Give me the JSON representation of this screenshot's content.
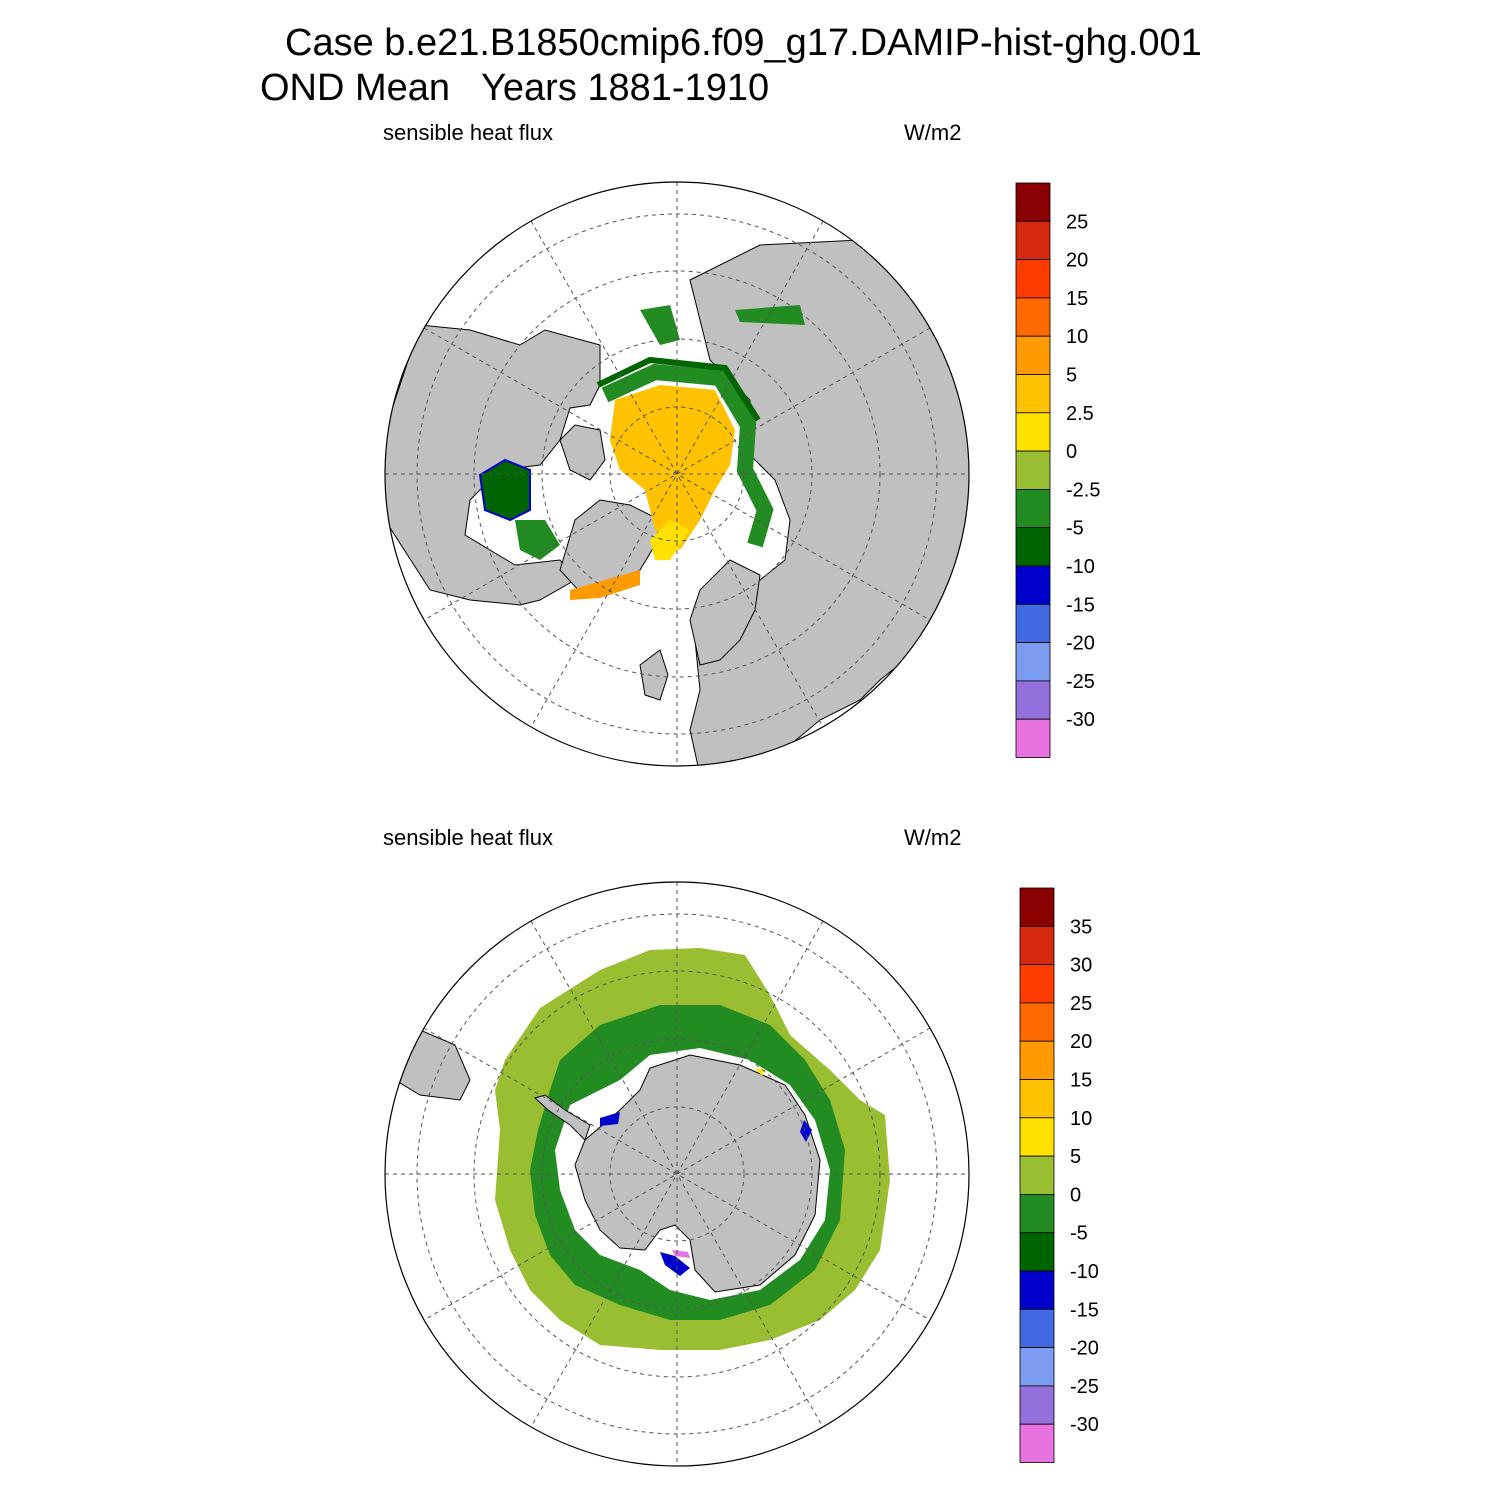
{
  "title": {
    "case_line": "Case b.e21.B1850cmip6.f09_g17.DAMIP-hist-ghg.001",
    "period_line": "OND Mean   Years 1881-1910"
  },
  "colors": {
    "land": "#c0c0c0",
    "ice": "#ffffff",
    "coast": "#000000",
    "grid": "#555555"
  },
  "panels": [
    {
      "hemisphere": "north",
      "variable_label": "sensible heat flux",
      "units_label": "W/m2",
      "colorbar": {
        "colors": [
          "#8b0000",
          "#d62a10",
          "#ff3c00",
          "#ff6a00",
          "#ff9a00",
          "#ffc200",
          "#ffe100",
          "#9abe32",
          "#228b22",
          "#006400",
          "#0000cd",
          "#4169e1",
          "#7b9cf0",
          "#9370db",
          "#e873e0"
        ],
        "labels": [
          "25",
          "20",
          "15",
          "10",
          "5",
          "2.5",
          "0",
          "-2.5",
          "-5",
          "-10",
          "-15",
          "-20",
          "-25",
          "-30"
        ]
      },
      "map_fields": [
        "Arctic Ocean positive flux (yellow)",
        "Marginal ice zone negative flux (green)",
        "Hudson Bay negative flux (dark green)",
        "Barents/Greenland coast positive flux (orange)"
      ]
    },
    {
      "hemisphere": "south",
      "variable_label": "sensible heat flux",
      "units_label": "W/m2",
      "colorbar": {
        "colors": [
          "#8b0000",
          "#d62a10",
          "#ff3c00",
          "#ff6a00",
          "#ff9a00",
          "#ffc200",
          "#ffe100",
          "#9abe32",
          "#228b22",
          "#006400",
          "#0000cd",
          "#4169e1",
          "#7b9cf0",
          "#9370db",
          "#e873e0"
        ],
        "labels": [
          "35",
          "30",
          "25",
          "20",
          "15",
          "10",
          "5",
          "0",
          "-5",
          "-10",
          "-15",
          "-20",
          "-25",
          "-30"
        ]
      },
      "map_fields": [
        "Outer sea-ice zone (light green)",
        "Inner sea-ice zone (green)",
        "Coastal polynya strong negative flux (blue)"
      ]
    }
  ]
}
